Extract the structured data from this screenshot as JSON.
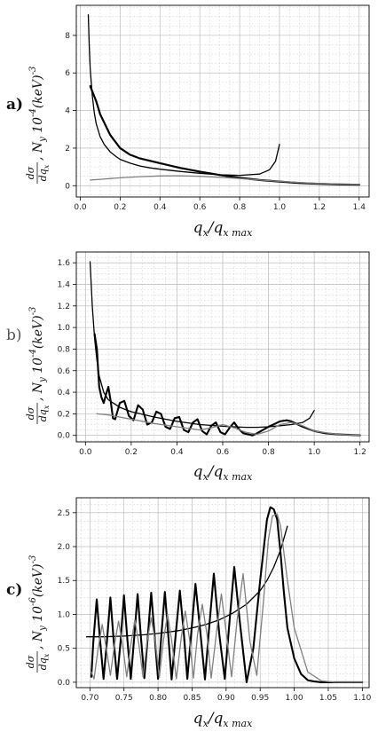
{
  "chart_data": [
    {
      "panel_label": "a)",
      "type": "line",
      "xlabel": "q_x/q_x max",
      "ylabel_frac_num": "dσ",
      "ylabel_frac_den": "dq_x",
      "ylabel_rest": ", N_y 10^-4 (keV)^-3",
      "xlim": [
        -0.02,
        1.45
      ],
      "ylim": [
        -0.6,
        9.6
      ],
      "xticks": [
        "0.0",
        "0.2",
        "0.4",
        "0.6",
        "0.8",
        "1.0",
        "1.2",
        "1.4"
      ],
      "yticks": [
        "0",
        "2",
        "4",
        "6",
        "8"
      ],
      "grid": true,
      "series": [
        {
          "color": "#000000",
          "width": 1.3,
          "x": [
            0.04,
            0.045,
            0.05,
            0.06,
            0.07,
            0.08,
            0.1,
            0.12,
            0.15,
            0.18,
            0.2,
            0.25,
            0.3,
            0.35,
            0.4,
            0.5,
            0.6,
            0.7,
            0.8,
            0.9,
            0.95,
            0.98,
            1.0
          ],
          "y": [
            9.1,
            7.4,
            6.2,
            4.8,
            3.9,
            3.3,
            2.6,
            2.2,
            1.8,
            1.55,
            1.4,
            1.2,
            1.05,
            0.95,
            0.88,
            0.76,
            0.66,
            0.58,
            0.55,
            0.62,
            0.85,
            1.3,
            2.2
          ]
        },
        {
          "color": "#000000",
          "width": 2.2,
          "x": [
            0.05,
            0.08,
            0.1,
            0.15,
            0.2,
            0.25,
            0.3,
            0.4,
            0.5,
            0.6,
            0.7,
            0.8,
            0.9,
            1.0,
            1.1,
            1.2,
            1.3,
            1.4
          ],
          "y": [
            5.3,
            4.5,
            3.8,
            2.7,
            2.0,
            1.65,
            1.45,
            1.2,
            0.95,
            0.75,
            0.57,
            0.42,
            0.3,
            0.22,
            0.14,
            0.1,
            0.07,
            0.05
          ]
        },
        {
          "color": "#808080",
          "width": 1.3,
          "x": [
            0.05,
            0.1,
            0.2,
            0.3,
            0.4,
            0.5,
            0.6,
            0.7,
            0.8,
            0.9,
            1.0,
            1.1,
            1.2,
            1.3,
            1.4
          ],
          "y": [
            0.3,
            0.34,
            0.42,
            0.48,
            0.52,
            0.53,
            0.5,
            0.45,
            0.38,
            0.3,
            0.23,
            0.17,
            0.12,
            0.09,
            0.07
          ]
        }
      ]
    },
    {
      "panel_label": "b)",
      "type": "line",
      "xlabel": "q_x/q_x max",
      "ylabel_frac_num": "dσ",
      "ylabel_frac_den": "dq_x",
      "ylabel_rest": ", N_y 10^-4 (keV)^-3",
      "xlim": [
        -0.04,
        1.24
      ],
      "ylim": [
        -0.06,
        1.7
      ],
      "xticks": [
        "0.0",
        "0.2",
        "0.4",
        "0.6",
        "0.8",
        "1.0",
        "1.2"
      ],
      "yticks": [
        "0.0",
        "0.2",
        "0.4",
        "0.6",
        "0.8",
        "1.0",
        "1.2",
        "1.4",
        "1.6"
      ],
      "grid": true,
      "series": [
        {
          "color": "#000000",
          "width": 1.3,
          "x": [
            0.02,
            0.025,
            0.03,
            0.035,
            0.04,
            0.05,
            0.06,
            0.08,
            0.1,
            0.15,
            0.2,
            0.3,
            0.4,
            0.5,
            0.6,
            0.7,
            0.75,
            0.8,
            0.85,
            0.9,
            0.95,
            0.98,
            1.0
          ],
          "y": [
            1.61,
            1.4,
            1.2,
            1.05,
            0.9,
            0.7,
            0.55,
            0.4,
            0.33,
            0.26,
            0.22,
            0.17,
            0.13,
            0.1,
            0.085,
            0.075,
            0.075,
            0.08,
            0.09,
            0.1,
            0.12,
            0.16,
            0.23
          ]
        },
        {
          "color": "#000000",
          "width": 2.1,
          "x": [
            0.04,
            0.05,
            0.06,
            0.07,
            0.08,
            0.09,
            0.1,
            0.11,
            0.12,
            0.13,
            0.15,
            0.17,
            0.19,
            0.21,
            0.23,
            0.25,
            0.27,
            0.29,
            0.31,
            0.33,
            0.35,
            0.37,
            0.39,
            0.41,
            0.43,
            0.45,
            0.47,
            0.49,
            0.51,
            0.53,
            0.55,
            0.57,
            0.59,
            0.61,
            0.63,
            0.65,
            0.67,
            0.69,
            0.71,
            0.73,
            0.75,
            0.8,
            0.85,
            0.88,
            0.9,
            0.95,
            1.0,
            1.05,
            1.1,
            1.15,
            1.2
          ],
          "y": [
            0.94,
            0.8,
            0.45,
            0.35,
            0.3,
            0.38,
            0.45,
            0.32,
            0.16,
            0.15,
            0.3,
            0.32,
            0.18,
            0.14,
            0.28,
            0.24,
            0.1,
            0.12,
            0.22,
            0.2,
            0.08,
            0.06,
            0.16,
            0.17,
            0.05,
            0.03,
            0.12,
            0.15,
            0.04,
            0.01,
            0.09,
            0.12,
            0.03,
            0.01,
            0.07,
            0.12,
            0.06,
            0.02,
            0.01,
            0.0,
            0.02,
            0.08,
            0.13,
            0.14,
            0.13,
            0.08,
            0.04,
            0.02,
            0.01,
            0.005,
            0.0
          ]
        },
        {
          "color": "#808080",
          "width": 1.3,
          "x": [
            0.05,
            0.1,
            0.2,
            0.3,
            0.4,
            0.5,
            0.55,
            0.6,
            0.65,
            0.7,
            0.75,
            0.8,
            0.85,
            0.9,
            0.95,
            1.0,
            1.1,
            1.2
          ],
          "y": [
            0.2,
            0.19,
            0.15,
            0.11,
            0.08,
            0.05,
            0.07,
            0.1,
            0.07,
            0.03,
            0.01,
            0.04,
            0.1,
            0.12,
            0.09,
            0.04,
            0.01,
            0.0
          ]
        }
      ]
    },
    {
      "panel_label": "c)",
      "type": "line",
      "xlabel": "q_x/q_x max",
      "ylabel_frac_num": "dσ",
      "ylabel_frac_den": "dq_x",
      "ylabel_rest": ", N_y 10^-6 (keV)^-3",
      "xlim": [
        0.68,
        1.11
      ],
      "ylim": [
        -0.08,
        2.72
      ],
      "xticks": [
        "0.70",
        "0.75",
        "0.80",
        "0.85",
        "0.90",
        "0.95",
        "1.00",
        "1.05",
        "1.10"
      ],
      "yticks": [
        "0.0",
        "0.5",
        "1.0",
        "1.5",
        "2.0",
        "2.5"
      ],
      "grid": true,
      "series": [
        {
          "color": "#000000",
          "width": 1.3,
          "x": [
            0.695,
            0.72,
            0.75,
            0.78,
            0.8,
            0.83,
            0.85,
            0.87,
            0.89,
            0.91,
            0.93,
            0.95,
            0.96,
            0.97,
            0.98,
            0.99
          ],
          "y": [
            0.67,
            0.67,
            0.68,
            0.7,
            0.72,
            0.76,
            0.8,
            0.85,
            0.92,
            1.02,
            1.15,
            1.35,
            1.5,
            1.7,
            1.95,
            2.3
          ]
        },
        {
          "color": "#000000",
          "width": 2.1,
          "x": [
            0.702,
            0.705,
            0.71,
            0.715,
            0.72,
            0.725,
            0.73,
            0.735,
            0.74,
            0.745,
            0.75,
            0.755,
            0.76,
            0.765,
            0.77,
            0.775,
            0.78,
            0.785,
            0.79,
            0.795,
            0.8,
            0.805,
            0.81,
            0.815,
            0.82,
            0.826,
            0.832,
            0.838,
            0.843,
            0.849,
            0.855,
            0.862,
            0.869,
            0.875,
            0.882,
            0.89,
            0.898,
            0.905,
            0.912,
            0.92,
            0.93,
            0.94,
            0.95,
            0.96,
            0.965,
            0.97,
            0.975,
            0.98,
            0.985,
            0.99,
            1.0,
            1.01,
            1.02,
            1.03,
            1.04,
            1.06,
            1.08,
            1.1
          ],
          "y": [
            0.08,
            0.6,
            1.22,
            0.6,
            0.05,
            0.6,
            1.25,
            0.6,
            0.05,
            0.6,
            1.28,
            0.62,
            0.05,
            0.65,
            1.3,
            0.65,
            0.06,
            0.68,
            1.32,
            0.68,
            0.05,
            0.7,
            1.33,
            0.7,
            0.04,
            0.7,
            1.35,
            0.7,
            0.05,
            0.75,
            1.45,
            0.75,
            0.04,
            0.8,
            1.6,
            0.7,
            0.05,
            0.9,
            1.7,
            0.9,
            0.0,
            0.5,
            1.5,
            2.4,
            2.58,
            2.55,
            2.4,
            1.9,
            1.3,
            0.8,
            0.35,
            0.12,
            0.03,
            0.01,
            0.0,
            0.0,
            0.0,
            0.0
          ]
        },
        {
          "color": "#808080",
          "width": 1.3,
          "x": [
            0.702,
            0.706,
            0.712,
            0.718,
            0.724,
            0.73,
            0.736,
            0.742,
            0.748,
            0.754,
            0.76,
            0.766,
            0.772,
            0.778,
            0.784,
            0.79,
            0.796,
            0.802,
            0.808,
            0.814,
            0.82,
            0.827,
            0.834,
            0.84,
            0.846,
            0.852,
            0.858,
            0.865,
            0.872,
            0.878,
            0.886,
            0.893,
            0.9,
            0.908,
            0.916,
            0.925,
            0.935,
            0.945,
            0.955,
            0.962,
            0.968,
            0.975,
            0.98,
            0.99,
            1.0,
            1.02,
            1.04,
            1.06,
            1.1
          ],
          "y": [
            0.15,
            0.05,
            0.5,
            0.85,
            0.5,
            0.1,
            0.55,
            0.9,
            0.55,
            0.08,
            0.55,
            0.92,
            0.55,
            0.08,
            0.6,
            0.95,
            0.6,
            0.07,
            0.62,
            1.0,
            0.62,
            0.05,
            0.65,
            1.05,
            0.65,
            0.06,
            0.7,
            1.15,
            0.7,
            0.06,
            0.75,
            1.3,
            0.75,
            0.08,
            0.9,
            1.6,
            0.6,
            0.1,
            1.2,
            2.1,
            2.45,
            2.48,
            2.3,
            1.5,
            0.8,
            0.15,
            0.02,
            0.0,
            0.0
          ]
        }
      ]
    }
  ]
}
